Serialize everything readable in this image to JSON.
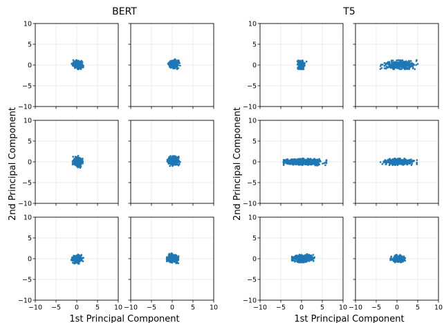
{
  "chart_data": {
    "type": "scatter",
    "layout": {
      "groups": 2,
      "rows": 3,
      "cols_per_group": 2
    },
    "groups": [
      {
        "title": "BERT",
        "xlabel": "1st Principal Component",
        "ylabel": "2nd Principal Component",
        "xlim": [
          -10,
          10
        ],
        "ylim": [
          -10,
          10
        ],
        "xticks": [
          "−10",
          "−5",
          "0",
          "5",
          "10"
        ],
        "yticks": [
          "10",
          "5",
          "0",
          "−5",
          "−10"
        ],
        "grid": true,
        "panels": [
          {
            "row": 0,
            "col": 0,
            "cx": 0.2,
            "cy": 0.1,
            "sx": 0.55,
            "sy": 0.42,
            "xr": [
              -1.2,
              1.6
            ],
            "yr": [
              -1.0,
              1.2
            ],
            "n": 320
          },
          {
            "row": 0,
            "col": 1,
            "cx": 0.3,
            "cy": 0.2,
            "sx": 0.55,
            "sy": 0.45,
            "xr": [
              -1.0,
              2.2
            ],
            "yr": [
              -1.0,
              1.4
            ],
            "n": 300
          },
          {
            "row": 1,
            "col": 0,
            "cx": 0.3,
            "cy": 0.0,
            "sx": 0.5,
            "sy": 0.55,
            "xr": [
              -1.0,
              1.5
            ],
            "yr": [
              -1.5,
              1.5
            ],
            "n": 300
          },
          {
            "row": 1,
            "col": 1,
            "cx": 0.3,
            "cy": 0.2,
            "sx": 0.6,
            "sy": 0.5,
            "xr": [
              -1.2,
              2.0
            ],
            "yr": [
              -1.0,
              1.4
            ],
            "n": 320
          },
          {
            "row": 2,
            "col": 0,
            "cx": 0.1,
            "cy": 0.0,
            "sx": 0.6,
            "sy": 0.45,
            "xr": [
              -1.3,
              1.6
            ],
            "yr": [
              -1.2,
              1.4
            ],
            "n": 320
          },
          {
            "row": 2,
            "col": 1,
            "cx": 0.2,
            "cy": 0.0,
            "sx": 0.6,
            "sy": 0.45,
            "xr": [
              -1.3,
              1.5
            ],
            "yr": [
              -1.1,
              1.3
            ],
            "n": 320
          }
        ]
      },
      {
        "title": "T5",
        "xlabel": "1st Principal Component",
        "ylabel": "2nd Principal Component",
        "xlim": [
          -10,
          10
        ],
        "ylim": [
          -10,
          10
        ],
        "xticks": [
          "−10",
          "−5",
          "0",
          "5",
          "10"
        ],
        "yticks": [
          "10",
          "5",
          "0",
          "−5",
          "−10"
        ],
        "grid": true,
        "panels": [
          {
            "row": 0,
            "col": 0,
            "cx": 0.0,
            "cy": 0.0,
            "sx": 0.4,
            "sy": 0.5,
            "xr": [
              -1.0,
              1.2
            ],
            "yr": [
              -1.0,
              1.1
            ],
            "n": 180
          },
          {
            "row": 0,
            "col": 1,
            "cx": 0.5,
            "cy": 0.0,
            "sx": 1.6,
            "sy": 0.45,
            "xr": [
              -4.0,
              5.0
            ],
            "yr": [
              -1.0,
              1.2
            ],
            "n": 480
          },
          {
            "row": 1,
            "col": 0,
            "cx": 0.2,
            "cy": 0.0,
            "sx": 2.3,
            "sy": 0.35,
            "xr": [
              -4.3,
              6.0
            ],
            "yr": [
              -0.9,
              0.9
            ],
            "n": 600
          },
          {
            "row": 1,
            "col": 1,
            "cx": 0.3,
            "cy": 0.0,
            "sx": 1.6,
            "sy": 0.3,
            "xr": [
              -4.3,
              4.8
            ],
            "yr": [
              -0.8,
              0.8
            ],
            "n": 480
          },
          {
            "row": 2,
            "col": 0,
            "cx": 0.3,
            "cy": 0.1,
            "sx": 1.2,
            "sy": 0.4,
            "xr": [
              -2.3,
              5.0
            ],
            "yr": [
              -0.9,
              1.1
            ],
            "n": 360
          },
          {
            "row": 2,
            "col": 1,
            "cx": 0.3,
            "cy": 0.0,
            "sx": 0.75,
            "sy": 0.35,
            "xr": [
              -1.6,
              2.5
            ],
            "yr": [
              -0.9,
              0.9
            ],
            "n": 240
          }
        ]
      }
    ],
    "colors": {
      "points": "#1f77b4",
      "grid": "#e3e3e3",
      "axis": "#000000"
    }
  }
}
